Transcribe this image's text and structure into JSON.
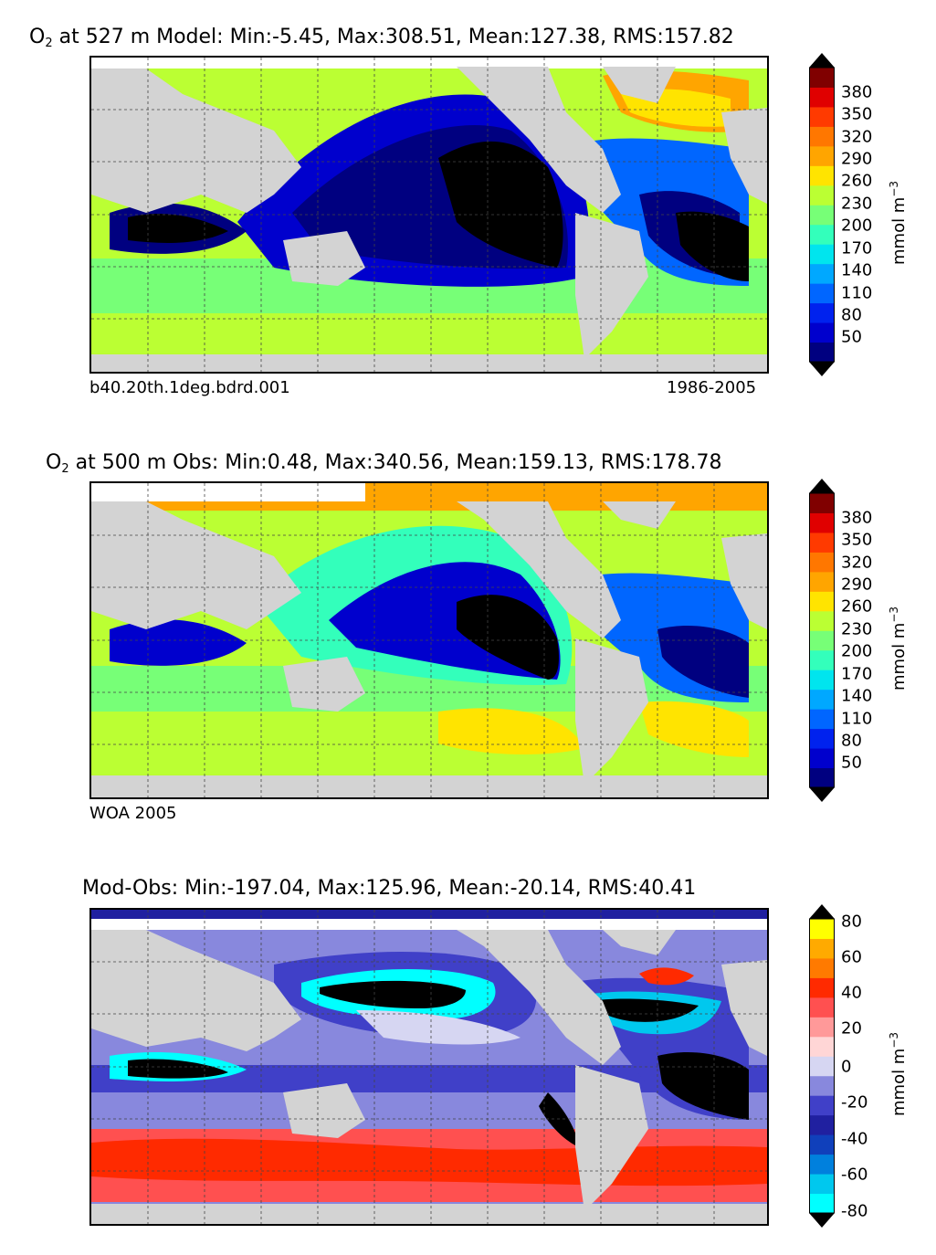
{
  "panels": [
    {
      "title_species": "O",
      "title_sub": "2",
      "title_rest": " at 527 m Model: Min:-5.45, Max:308.51, Mean:127.38, RMS:157.82",
      "left_note": "b40.20th.1deg.bdrd.001",
      "right_note": "1986-2005",
      "colorbar_ticks": [
        "380",
        "350",
        "320",
        "290",
        "260",
        "230",
        "200",
        "170",
        "140",
        "110",
        "80",
        "50"
      ],
      "unit": "mmol m",
      "unit_exp": "−3"
    },
    {
      "title_species": "O",
      "title_sub": "2",
      "title_rest": " at 500 m Obs: Min:0.48, Max:340.56, Mean:159.13, RMS:178.78",
      "left_note": "WOA 2005",
      "right_note": "",
      "colorbar_ticks": [
        "380",
        "350",
        "320",
        "290",
        "260",
        "230",
        "200",
        "170",
        "140",
        "110",
        "80",
        "50"
      ],
      "unit": "mmol m",
      "unit_exp": "−3"
    },
    {
      "title_species": "",
      "title_sub": "",
      "title_rest": "Mod-Obs: Min:-197.04, Max:125.96, Mean:-20.14, RMS:40.41",
      "left_note": "",
      "right_note": "",
      "colorbar_ticks": [
        "80",
        "60",
        "40",
        "20",
        "0",
        "-20",
        "-40",
        "-60",
        "-80"
      ],
      "unit": "mmol m",
      "unit_exp": "−3"
    }
  ],
  "colors": {
    "o2_scale": [
      "#000080",
      "#0000cd",
      "#0022ee",
      "#0066ff",
      "#00a8ff",
      "#00e5ee",
      "#33ffbb",
      "#77ff77",
      "#bbff33",
      "#ffe400",
      "#ffa500",
      "#ff7700",
      "#ff3a00",
      "#e00000",
      "#800000"
    ],
    "diff_scale": [
      "#00ffff",
      "#00c8ee",
      "#0080dd",
      "#1040bb",
      "#2020a0",
      "#4040c8",
      "#8888dd",
      "#d6d6f2",
      "#ffd6d6",
      "#ff9999",
      "#ff5050",
      "#ff2a00",
      "#ff7a00",
      "#ffaa00",
      "#ffff00"
    ],
    "land": "#d3d3d3",
    "black_region": "#000000"
  }
}
